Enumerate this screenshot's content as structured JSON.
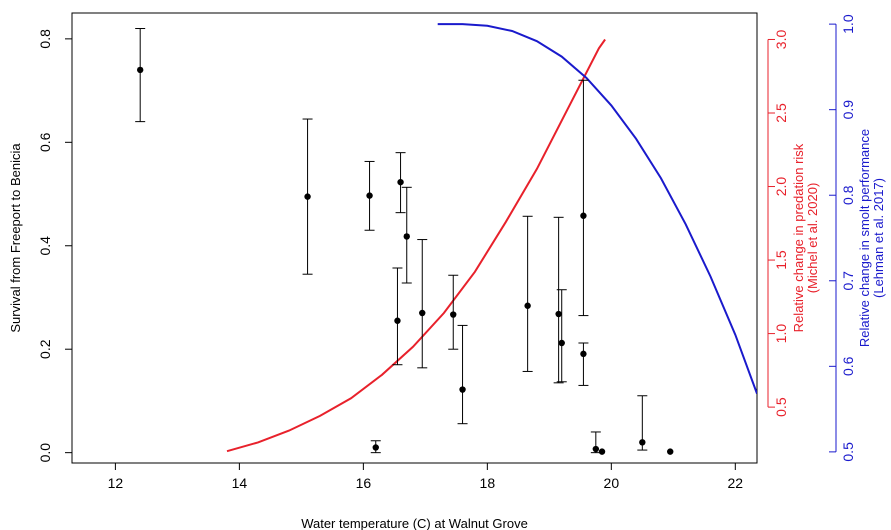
{
  "chart_data": {
    "type": "scatter",
    "title": "",
    "xlabel": "Water temperature (C) at Walnut Grove",
    "xlim": [
      11.3,
      22.35
    ],
    "x_ticks": [
      12,
      14,
      16,
      18,
      20,
      22
    ],
    "grid": false,
    "left_axis": {
      "label": "Survival from Freeport to Benicia",
      "ylim": [
        -0.02,
        0.85
      ],
      "ticks": [
        0.0,
        0.2,
        0.4,
        0.6,
        0.8
      ],
      "tick_labels": [
        "0.0",
        "0.2",
        "0.4",
        "0.6",
        "0.8"
      ],
      "color": "#000000"
    },
    "right_axis_1": {
      "label_lines": [
        "Relative change in predation risk",
        "(Michel et al. 2020)"
      ],
      "ylim": [
        0.12,
        3.18
      ],
      "ticks": [
        0.5,
        1.0,
        1.5,
        2.0,
        2.5,
        3.0
      ],
      "tick_labels": [
        "0.5",
        "1.0",
        "1.5",
        "2.0",
        "2.5",
        "3.0"
      ],
      "color": "#e8212b"
    },
    "right_axis_2": {
      "label_lines": [
        "Relative change in smolt performance",
        "(Lehman et al. 2017)"
      ],
      "ylim": [
        0.487,
        1.013
      ],
      "ticks": [
        0.5,
        0.6,
        0.7,
        0.8,
        0.9,
        1.0
      ],
      "tick_labels": [
        "0.5",
        "0.6",
        "0.7",
        "0.8",
        "0.9",
        "1.0"
      ],
      "color": "#1a1acc"
    },
    "points": [
      {
        "x": 12.4,
        "y": 0.74,
        "low": 0.64,
        "high": 0.82
      },
      {
        "x": 15.1,
        "y": 0.495,
        "low": 0.345,
        "high": 0.645
      },
      {
        "x": 16.1,
        "y": 0.497,
        "low": 0.43,
        "high": 0.563
      },
      {
        "x": 16.2,
        "y": 0.01,
        "low": 0.0,
        "high": 0.023
      },
      {
        "x": 16.55,
        "y": 0.255,
        "low": 0.17,
        "high": 0.357
      },
      {
        "x": 16.6,
        "y": 0.523,
        "low": 0.464,
        "high": 0.58
      },
      {
        "x": 16.7,
        "y": 0.418,
        "low": 0.328,
        "high": 0.513
      },
      {
        "x": 16.95,
        "y": 0.27,
        "low": 0.164,
        "high": 0.412
      },
      {
        "x": 17.45,
        "y": 0.267,
        "low": 0.2,
        "high": 0.343
      },
      {
        "x": 17.6,
        "y": 0.122,
        "low": 0.056,
        "high": 0.246
      },
      {
        "x": 18.65,
        "y": 0.284,
        "low": 0.157,
        "high": 0.457
      },
      {
        "x": 19.15,
        "y": 0.268,
        "low": 0.135,
        "high": 0.455
      },
      {
        "x": 19.2,
        "y": 0.212,
        "low": 0.137,
        "high": 0.315
      },
      {
        "x": 19.55,
        "y": 0.458,
        "low": 0.265,
        "high": 0.72
      },
      {
        "x": 19.55,
        "y": 0.191,
        "low": 0.13,
        "high": 0.212
      },
      {
        "x": 19.75,
        "y": 0.007,
        "low": 0.0,
        "high": 0.04
      },
      {
        "x": 19.85,
        "y": 0.002
      },
      {
        "x": 20.5,
        "y": 0.02,
        "low": 0.005,
        "high": 0.11
      },
      {
        "x": 20.95,
        "y": 0.002
      }
    ],
    "curves": [
      {
        "axis": "right_axis_1",
        "color": "#e8212b",
        "x": [
          13.8,
          14.3,
          14.8,
          15.3,
          15.8,
          16.3,
          16.8,
          17.3,
          17.8,
          18.3,
          18.8,
          19.3,
          19.8,
          19.9
        ],
        "y": [
          0.2,
          0.26,
          0.34,
          0.44,
          0.56,
          0.72,
          0.91,
          1.14,
          1.42,
          1.76,
          2.12,
          2.53,
          2.94,
          3.0
        ]
      },
      {
        "axis": "right_axis_2",
        "color": "#1a1acc",
        "x": [
          17.2,
          17.6,
          18.0,
          18.4,
          18.8,
          19.2,
          19.6,
          20.0,
          20.4,
          20.8,
          21.2,
          21.6,
          22.0,
          22.35
        ],
        "y": [
          1.0,
          1.0,
          0.998,
          0.992,
          0.98,
          0.962,
          0.937,
          0.905,
          0.866,
          0.82,
          0.766,
          0.705,
          0.637,
          0.568
        ]
      }
    ]
  }
}
